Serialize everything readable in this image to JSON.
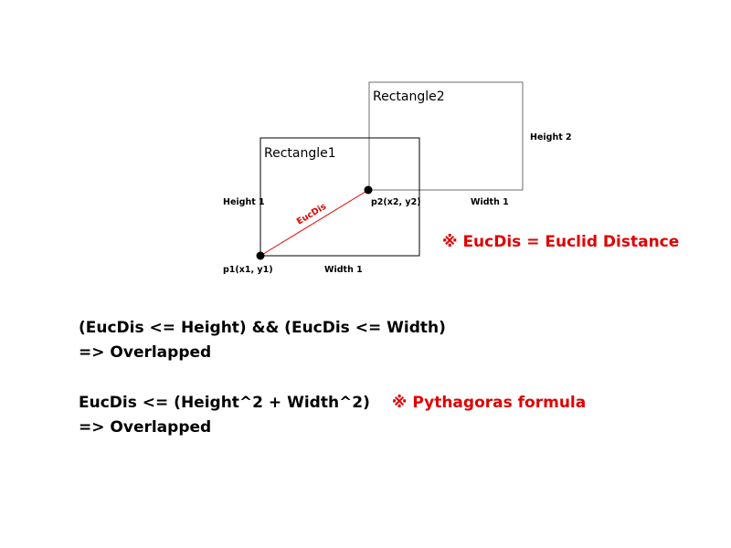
{
  "diagram": {
    "rect1": {
      "title": "Rectangle1",
      "height_label": "Height 1",
      "width_label": "Width 1"
    },
    "rect2": {
      "title": "Rectangle2",
      "height_label": "Height 2",
      "width_label": "Width 1"
    },
    "p1_label": "p1(x1, y1)",
    "p2_label": "p2(x2, y2)",
    "eucdis_label": "EucDis",
    "eucdis_note": "※ EucDis = Euclid Distance",
    "colors": {
      "accent": "#e00000",
      "line": "#000000"
    }
  },
  "formulas": {
    "rule1_line1": "(EucDis <= Height) && (EucDis <= Width)",
    "rule1_line2": "=> Overlapped",
    "rule2_line1": "EucDis <= (Height^2 + Width^2)",
    "rule2_note": "※ Pythagoras formula",
    "rule2_line2": "=> Overlapped"
  }
}
